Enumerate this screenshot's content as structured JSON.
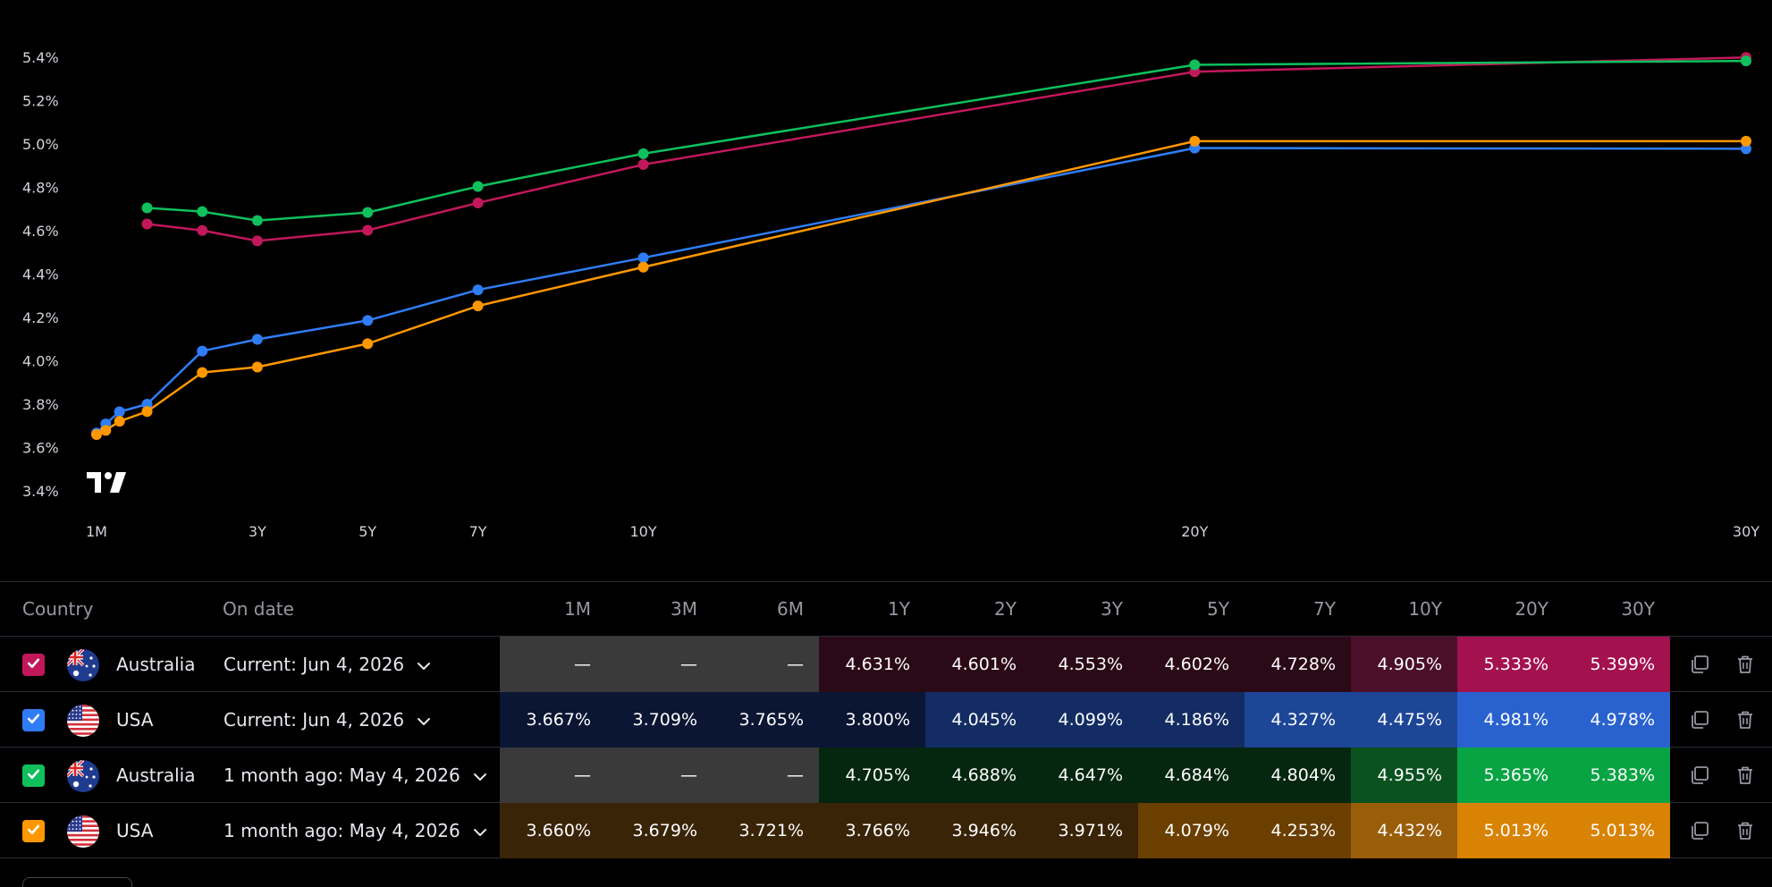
{
  "chart_data": {
    "type": "line",
    "x_labels": [
      "1M",
      "3Y",
      "5Y",
      "7Y",
      "10Y",
      "20Y",
      "30Y"
    ],
    "x_label_years": [
      0.0833,
      3,
      5,
      7,
      10,
      20,
      30
    ],
    "y_ticks": [
      "5.4%",
      "5.2%",
      "5.0%",
      "4.8%",
      "4.6%",
      "4.4%",
      "4.2%",
      "4.0%",
      "3.8%",
      "3.6%",
      "3.4%"
    ],
    "y_tick_values": [
      5.4,
      5.2,
      5.0,
      4.8,
      4.6,
      4.4,
      4.2,
      4.0,
      3.8,
      3.6,
      3.4
    ],
    "ylim": [
      3.4,
      5.4
    ],
    "xlim": [
      0.0833,
      30
    ],
    "maturities": [
      0.0833,
      0.25,
      0.5,
      1,
      2,
      3,
      5,
      7,
      10,
      20,
      30
    ],
    "series": [
      {
        "color": "#c2185b",
        "values": [
          null,
          null,
          null,
          4.631,
          4.601,
          4.553,
          4.602,
          4.728,
          4.905,
          5.333,
          5.399
        ]
      },
      {
        "color": "#2f7df6",
        "values": [
          3.667,
          3.709,
          3.765,
          3.8,
          4.045,
          4.099,
          4.186,
          4.327,
          4.475,
          4.981,
          4.978
        ]
      },
      {
        "color": "#0fc05c",
        "values": [
          null,
          null,
          null,
          4.705,
          4.688,
          4.647,
          4.684,
          4.804,
          4.955,
          5.365,
          5.383
        ]
      },
      {
        "color": "#ff9800",
        "values": [
          3.66,
          3.679,
          3.721,
          3.766,
          3.946,
          3.971,
          4.079,
          4.253,
          4.432,
          5.013,
          5.013
        ]
      }
    ]
  },
  "table": {
    "headers": {
      "country": "Country",
      "date": "On date",
      "tenors": [
        "1M",
        "3M",
        "6M",
        "1Y",
        "2Y",
        "3Y",
        "5Y",
        "7Y",
        "10Y",
        "20Y",
        "30Y"
      ]
    },
    "rows": [
      {
        "country": "Australia",
        "flag": "australia-flag-icon",
        "date": "Current: Jun 4, 2026",
        "checkbox_color": "#c2185b",
        "values": [
          "—",
          "—",
          "—",
          "4.631%",
          "4.601%",
          "4.553%",
          "4.602%",
          "4.728%",
          "4.905%",
          "5.333%",
          "5.399%"
        ],
        "bg": [
          "#3a3a3a",
          "#3a3a3a",
          "#3a3a3a",
          "#2b0a17",
          "#2b0a17",
          "#2b0a17",
          "#2b0a17",
          "#2b0a17",
          "#4b0f2a",
          "#a3114f",
          "#a3114f"
        ]
      },
      {
        "country": "USA",
        "flag": "usa-flag-icon",
        "date": "Current: Jun 4, 2026",
        "checkbox_color": "#2f7df6",
        "values": [
          "3.667%",
          "3.709%",
          "3.765%",
          "3.800%",
          "4.045%",
          "4.099%",
          "4.186%",
          "4.327%",
          "4.475%",
          "4.981%",
          "4.978%"
        ],
        "bg": [
          "#0a1633",
          "#0a1633",
          "#0a1633",
          "#0a1633",
          "#132c63",
          "#132c63",
          "#132c63",
          "#1d4697",
          "#1d4697",
          "#2962cf",
          "#2962cf"
        ]
      },
      {
        "country": "Australia",
        "flag": "australia-flag-icon",
        "date": "1 month ago: May 4, 2026",
        "checkbox_color": "#0fc05c",
        "values": [
          "—",
          "—",
          "—",
          "4.705%",
          "4.688%",
          "4.647%",
          "4.684%",
          "4.804%",
          "4.955%",
          "5.365%",
          "5.383%"
        ],
        "bg": [
          "#3a3a3a",
          "#3a3a3a",
          "#3a3a3a",
          "#05260f",
          "#05260f",
          "#05260f",
          "#05260f",
          "#05260f",
          "#0a5220",
          "#08a443",
          "#08a443"
        ]
      },
      {
        "country": "USA",
        "flag": "usa-flag-icon",
        "date": "1 month ago: May 4, 2026",
        "checkbox_color": "#ff9800",
        "values": [
          "3.660%",
          "3.679%",
          "3.721%",
          "3.766%",
          "3.946%",
          "3.971%",
          "4.079%",
          "4.253%",
          "4.432%",
          "5.013%",
          "5.013%"
        ],
        "bg": [
          "#3a2408",
          "#3a2408",
          "#3a2408",
          "#3a2408",
          "#3a2408",
          "#3a2408",
          "#6a3f00",
          "#6a3f00",
          "#9a5d0a",
          "#d98305",
          "#d98305"
        ]
      }
    ]
  },
  "icons": {
    "chevron": "chevron-down-icon",
    "copy": "copy-icon",
    "delete": "trash-icon",
    "logo": "tradingview-logo-icon"
  }
}
